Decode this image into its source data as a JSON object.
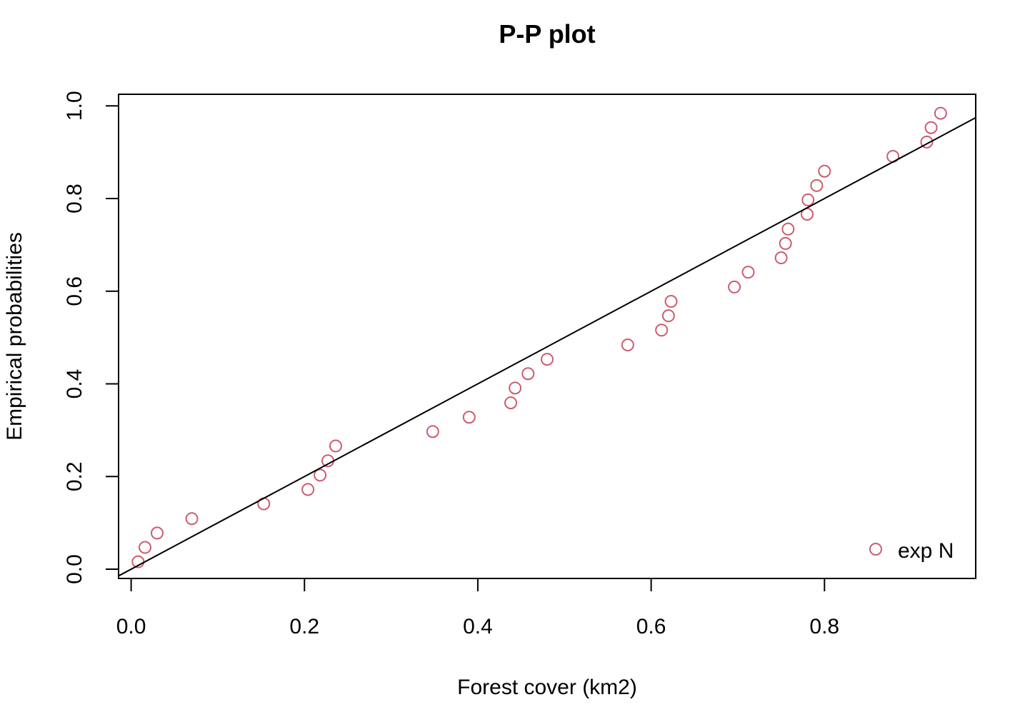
{
  "chart_data": {
    "type": "scatter",
    "title": "P-P plot",
    "xlabel": "Forest cover (km2)",
    "ylabel": "Empirical probabilities",
    "xlim": [
      -0.0145,
      0.9745
    ],
    "ylim": [
      -0.02,
      1.025
    ],
    "x_ticks": [
      0.0,
      0.2,
      0.4,
      0.6,
      0.8
    ],
    "x_tick_labels": [
      "0.0",
      "0.2",
      "0.4",
      "0.6",
      "0.8"
    ],
    "y_ticks": [
      0.0,
      0.2,
      0.4,
      0.6,
      0.8,
      1.0
    ],
    "y_tick_labels": [
      "0.0",
      "0.2",
      "0.4",
      "0.6",
      "0.8",
      "1.0"
    ],
    "grid": false,
    "legend": {
      "position": "bottom-right",
      "entries": [
        "exp N"
      ]
    },
    "marker_color": "#cd5c6e",
    "reference_line": {
      "slope": 1,
      "intercept": 0,
      "color": "#000000"
    },
    "series": [
      {
        "name": "exp N",
        "x": [
          0.008,
          0.016,
          0.03,
          0.07,
          0.153,
          0.204,
          0.218,
          0.227,
          0.236,
          0.348,
          0.39,
          0.438,
          0.443,
          0.458,
          0.48,
          0.573,
          0.612,
          0.62,
          0.623,
          0.696,
          0.712,
          0.75,
          0.755,
          0.758,
          0.78,
          0.781,
          0.791,
          0.8,
          0.879,
          0.918,
          0.923,
          0.934
        ],
        "y": [
          0.016,
          0.047,
          0.078,
          0.109,
          0.141,
          0.172,
          0.203,
          0.234,
          0.266,
          0.297,
          0.328,
          0.359,
          0.391,
          0.422,
          0.453,
          0.484,
          0.516,
          0.547,
          0.578,
          0.609,
          0.641,
          0.672,
          0.703,
          0.734,
          0.766,
          0.797,
          0.828,
          0.859,
          0.891,
          0.922,
          0.953,
          0.984
        ]
      }
    ]
  }
}
